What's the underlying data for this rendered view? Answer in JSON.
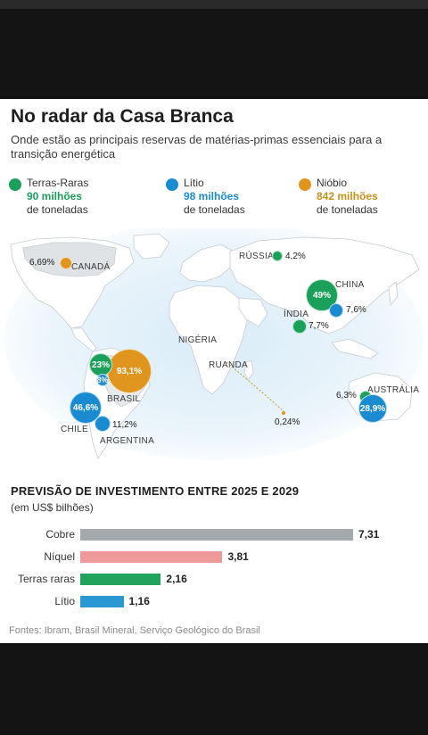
{
  "title": "No radar da Casa Branca",
  "subtitle": "Onde estão as principais reservas de matérias-primas essenciais para a transição energética",
  "colors": {
    "terras_raras": "#1aa05a",
    "litio": "#1a8bd1",
    "niobio": "#e0961e",
    "cobre": "#a3a9ad",
    "niquel": "#ee9a9a",
    "terras_raras_bar": "#22a35d",
    "litio_bar": "#2a98d2",
    "niobio_text": "#c7901a"
  },
  "legend": [
    {
      "name": "Terras-Raras",
      "value": "90 milhões",
      "unit": "de toneladas"
    },
    {
      "name": "Lítio",
      "value": "98 milhões",
      "unit": "de toneladas"
    },
    {
      "name": "Nióbio",
      "value": "842 milhões",
      "unit": "de toneladas"
    }
  ],
  "map": {
    "countries": [
      "CANADÁ",
      "RÚSSIA",
      "CHINA",
      "ÍNDIA",
      "NIGÉRIA",
      "RUANDA",
      "BRASIL",
      "CHILE",
      "ARGENTINA",
      "AUSTRÁLIA"
    ],
    "values": {
      "canada_niobio": "6,69%",
      "russia_terras": "4,2%",
      "china_terras": "49%",
      "china_litio": "7,6%",
      "india_terras": "7,7%",
      "brasil_terras": "23%",
      "brasil_litio": "8%",
      "brasil_niobio": "93,1%",
      "chile_litio": "46,6%",
      "argentina_litio": "11,2%",
      "australia_terras": "6,3%",
      "australia_litio": "28,9%",
      "ruanda_niobio": "0,24%"
    }
  },
  "chart_data": {
    "type": "bar",
    "title": "PREVISÃO DE INVESTIMENTO ENTRE 2025 E 2029",
    "subtitle": "(em US$ bilhões)",
    "categories": [
      "Cobre",
      "Níquel",
      "Terras raras",
      "Lítio"
    ],
    "values": [
      7.31,
      3.81,
      2.16,
      1.16
    ],
    "value_labels": [
      "7,31",
      "3,81",
      "2,16",
      "1,16"
    ],
    "orientation": "horizontal",
    "xlim": [
      0,
      7.31
    ],
    "grid": false
  },
  "sources": "Fontes: Ibram, Brasil Mineral, Serviço Geológico do Brasil"
}
